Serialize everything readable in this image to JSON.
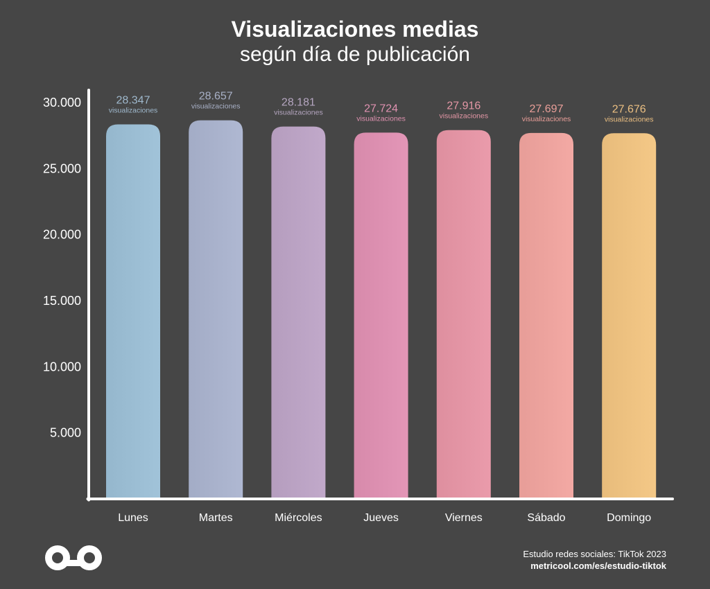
{
  "title": "Visualizaciones medias",
  "subtitle": "según día de publicación",
  "chart_data": {
    "type": "bar",
    "title": "Visualizaciones medias",
    "subtitle": "según día de publicación",
    "categories": [
      "Lunes",
      "Martes",
      "Miércoles",
      "Jueves",
      "Viernes",
      "Sábado",
      "Domingo"
    ],
    "values": [
      28347,
      28657,
      28181,
      27724,
      27916,
      27697,
      27676
    ],
    "value_labels": [
      "28.347",
      "28.657",
      "28.181",
      "27.724",
      "27.916",
      "27.697",
      "27.676"
    ],
    "value_unit_label": "visualizaciones",
    "y_ticks": [
      5000,
      10000,
      15000,
      20000,
      25000,
      30000
    ],
    "y_tick_labels": [
      "5.000",
      "10.000",
      "15.000",
      "20.000",
      "25.000",
      "30.000"
    ],
    "ylim": [
      0,
      30000
    ],
    "xlabel": "",
    "ylabel": "",
    "grid": false,
    "legend": "none",
    "bar_colors": [
      "#9bbdd3",
      "#a9b2cc",
      "#bba3c4",
      "#dd90b1",
      "#e495a5",
      "#eda39e",
      "#eec281"
    ],
    "label_colors": [
      "#9fb8cc",
      "#a8b0c6",
      "#b5a6c0",
      "#df92b0",
      "#e497a6",
      "#ea9f99",
      "#ebbf82"
    ]
  },
  "footer": {
    "study": "Estudio redes sociales: TikTok 2023",
    "url": "metricool.com/es/estudio-tiktok"
  },
  "logo": {
    "icon": "infinity-logo-icon",
    "color": "#ffffff"
  },
  "colors": {
    "background": "#464646",
    "axis": "#ffffff",
    "text": "#ffffff"
  }
}
